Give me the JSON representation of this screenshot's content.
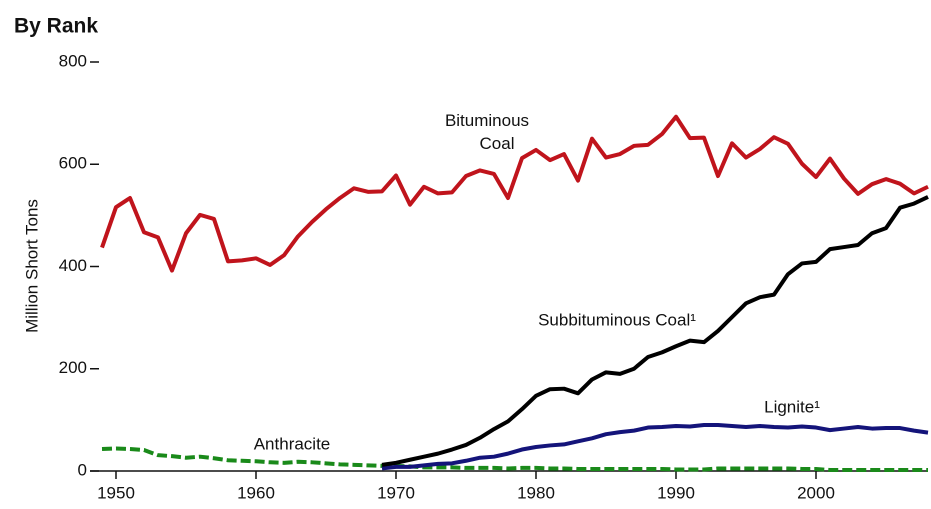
{
  "chart_data": {
    "type": "line",
    "title": "By Rank",
    "y_label": "Million Short Tons",
    "x": [
      1949,
      1950,
      1951,
      1952,
      1953,
      1954,
      1955,
      1956,
      1957,
      1958,
      1959,
      1960,
      1961,
      1962,
      1963,
      1964,
      1965,
      1966,
      1967,
      1968,
      1969,
      1970,
      1971,
      1972,
      1973,
      1974,
      1975,
      1976,
      1977,
      1978,
      1979,
      1980,
      1981,
      1982,
      1983,
      1984,
      1985,
      1986,
      1987,
      1988,
      1989,
      1990,
      1991,
      1992,
      1993,
      1994,
      1995,
      1996,
      1997,
      1998,
      1999,
      2000,
      2001,
      2002,
      2003,
      2004,
      2005,
      2006,
      2007,
      2008
    ],
    "xlim": [
      1949,
      2008
    ],
    "xticks": [
      1950,
      1960,
      1970,
      1980,
      1990,
      2000
    ],
    "ylim": [
      0,
      800
    ],
    "yticks": [
      0,
      200,
      400,
      600,
      800
    ],
    "series": [
      {
        "name": "Bituminous Coal",
        "color": "#c0141c",
        "dashed": false,
        "values": [
          437,
          516,
          534,
          467,
          457,
          392,
          465,
          501,
          493,
          410,
          412,
          416,
          403,
          422,
          459,
          487,
          512,
          534,
          553,
          546,
          547,
          578,
          521,
          556,
          543,
          545,
          577,
          588,
          581,
          534,
          612,
          628,
          608,
          620,
          568,
          650,
          613,
          620,
          636,
          638,
          659,
          693,
          651,
          652,
          577,
          641,
          613,
          630,
          653,
          640,
          601,
          575,
          611,
          572,
          542,
          561,
          571,
          562,
          543,
          556
        ]
      },
      {
        "name": "Subbituminous Coal¹",
        "color": "#000000",
        "dashed": false,
        "values": [
          null,
          null,
          null,
          null,
          null,
          null,
          null,
          null,
          null,
          null,
          null,
          null,
          null,
          null,
          null,
          null,
          null,
          null,
          null,
          null,
          12,
          16,
          22,
          28,
          34,
          42,
          51,
          65,
          82,
          97,
          121,
          147,
          160,
          161,
          152,
          179,
          193,
          190,
          200,
          223,
          232,
          244,
          255,
          252,
          274,
          301,
          328,
          340,
          345,
          385,
          406,
          409,
          434,
          438,
          442,
          465,
          475,
          515,
          523,
          536
        ]
      },
      {
        "name": "Lignite¹",
        "color": "#14147a",
        "dashed": false,
        "values": [
          null,
          null,
          null,
          null,
          null,
          null,
          null,
          null,
          null,
          null,
          null,
          null,
          null,
          null,
          null,
          null,
          null,
          null,
          null,
          null,
          5,
          8,
          8,
          11,
          14,
          15,
          20,
          26,
          28,
          34,
          42,
          47,
          50,
          52,
          58,
          64,
          72,
          76,
          79,
          85,
          86,
          88,
          87,
          90,
          90,
          88,
          86,
          88,
          86,
          85,
          87,
          85,
          80,
          83,
          86,
          83,
          84,
          84,
          79,
          75
        ]
      },
      {
        "name": "Anthracite",
        "color": "#1a8a1a",
        "dashed": true,
        "values": [
          43,
          44,
          43,
          41,
          31,
          29,
          26,
          28,
          25,
          21,
          20,
          19,
          17,
          16,
          18,
          17,
          15,
          13,
          12,
          11,
          10,
          10,
          9,
          7,
          7,
          7,
          6,
          6,
          6,
          5,
          6,
          6,
          5,
          5,
          4,
          4,
          4,
          4,
          4,
          4,
          4,
          3,
          3,
          3,
          5,
          5,
          5,
          5,
          5,
          5,
          4,
          4,
          2,
          2,
          2,
          2,
          2,
          2,
          2,
          2
        ]
      }
    ]
  }
}
